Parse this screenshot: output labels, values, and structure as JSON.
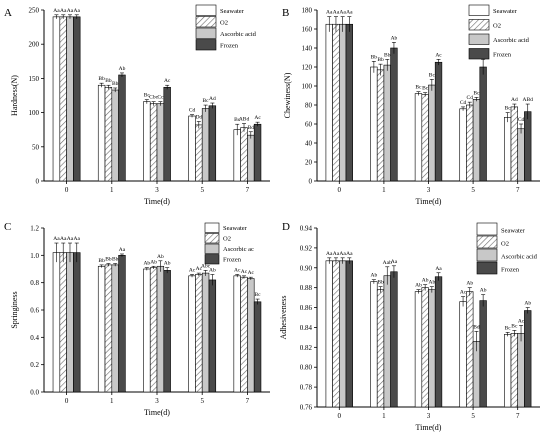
{
  "colors": {
    "seawater": "#ffffff",
    "o2": "#ffffff",
    "ascorbic": "#c8c8c8",
    "frozen": "#4a4a4a",
    "axis": "#000000"
  },
  "chart_data": [
    {
      "panel": "A",
      "type": "bar",
      "categories": [
        "0",
        "1",
        "3",
        "5",
        "7"
      ],
      "xlabel": "Time(d)",
      "ylabel": "Hardness(N)",
      "ylim": [
        0,
        250
      ],
      "yticks": [
        0,
        50,
        100,
        150,
        200,
        250
      ],
      "legend_placement": "top-right",
      "series": [
        {
          "name": "Seawater",
          "values": [
            240,
            140,
            116,
            95,
            75
          ],
          "errors": [
            3,
            3,
            3,
            2,
            8
          ],
          "labels": [
            "Aa",
            "Bb",
            "Bc",
            "Cd",
            "Bc"
          ]
        },
        {
          "name": "O2",
          "values": [
            240,
            137,
            113,
            82,
            78
          ],
          "errors": [
            3,
            3,
            3,
            5,
            6
          ],
          "labels": [
            "Aa",
            "Bb",
            "Cbc",
            "Dd",
            "ABd"
          ]
        },
        {
          "name": "Ascorbic acid",
          "values": [
            240,
            133,
            113,
            106,
            67
          ],
          "errors": [
            3,
            3,
            3,
            5,
            5
          ],
          "labels": [
            "Aa",
            "Bb",
            "Cc",
            "Bc",
            "Bd"
          ]
        },
        {
          "name": "Frozen",
          "values": [
            240,
            155,
            137,
            110,
            83
          ],
          "errors": [
            3,
            3,
            3,
            4,
            3
          ],
          "labels": [
            "Aa",
            "Ab",
            "Ac",
            "Ad",
            "Ac"
          ]
        }
      ]
    },
    {
      "panel": "B",
      "type": "bar",
      "categories": [
        "0",
        "1",
        "3",
        "5",
        "7"
      ],
      "xlabel": "Time(d)",
      "ylabel": "Chewiness(N)",
      "ylim": [
        0,
        180
      ],
      "yticks": [
        0,
        20,
        40,
        60,
        80,
        100,
        120,
        140,
        160,
        180
      ],
      "legend_placement": "top-right",
      "series": [
        {
          "name": "Seawater",
          "values": [
            165,
            120,
            92,
            76,
            67
          ],
          "errors": [
            8,
            6,
            2,
            2,
            5
          ],
          "labels": [
            "Aa",
            "Bb",
            "Bc",
            "Cd",
            "Bc"
          ]
        },
        {
          "name": "O2",
          "values": [
            165,
            117,
            91,
            80,
            78
          ],
          "errors": [
            8,
            6,
            2,
            3,
            3
          ],
          "labels": [
            "Aa",
            "Bb",
            "Bc",
            "Cd",
            "Ad"
          ]
        },
        {
          "name": "Ascorbic acid",
          "values": [
            165,
            122,
            101,
            86,
            55
          ],
          "errors": [
            8,
            6,
            6,
            2,
            5
          ],
          "labels": [
            "Aa",
            "Bb",
            "Bc",
            "Bc",
            "Cd"
          ]
        },
        {
          "name": "Frozen",
          "values": [
            165,
            140,
            125,
            120,
            73
          ],
          "errors": [
            8,
            6,
            3,
            8,
            8
          ],
          "labels": [
            "Aa",
            "Ab",
            "Ac",
            "Ac",
            "ABd"
          ]
        }
      ]
    },
    {
      "panel": "C",
      "type": "bar",
      "categories": [
        "0",
        "1",
        "3",
        "5",
        "7"
      ],
      "xlabel": "Time(d)",
      "ylabel": "Springiness",
      "ylim": [
        0,
        1.2
      ],
      "yticks": [
        0.0,
        0.2,
        0.4,
        0.6,
        0.8,
        1.0,
        1.2
      ],
      "legend_placement": "top-right",
      "series": [
        {
          "name": "Seawater",
          "values": [
            1.02,
            0.92,
            0.9,
            0.85,
            0.85
          ],
          "errors": [
            0.07,
            0.01,
            0.01,
            0.01,
            0.01
          ],
          "labels": [
            "Aa",
            "Bb",
            "Ab",
            "Ac",
            "Ac"
          ]
        },
        {
          "name": "O2",
          "values": [
            1.02,
            0.93,
            0.91,
            0.86,
            0.84
          ],
          "errors": [
            0.07,
            0.01,
            0.01,
            0.01,
            0.01
          ],
          "labels": [
            "Aa",
            "Bb",
            "Ab",
            "Ac",
            "Ac"
          ]
        },
        {
          "name": "Ascorbic ac",
          "values": [
            1.02,
            0.93,
            0.92,
            0.87,
            0.83
          ],
          "errors": [
            0.07,
            0.01,
            0.04,
            0.02,
            0.01
          ],
          "labels": [
            "Aa",
            "Bb",
            "Ab",
            "Abc",
            "Ac"
          ]
        },
        {
          "name": "Frozen",
          "values": [
            1.02,
            1.0,
            0.89,
            0.82,
            0.66
          ],
          "errors": [
            0.07,
            0.01,
            0.02,
            0.04,
            0.02
          ],
          "labels": [
            "Aa",
            "Aa",
            "Ab",
            "Ab",
            "Bc"
          ]
        }
      ]
    },
    {
      "panel": "D",
      "type": "bar",
      "categories": [
        "0",
        "1",
        "3",
        "5",
        "7"
      ],
      "xlabel": "Time(d)",
      "ylabel": "Adhesiveness",
      "ylim": [
        0.76,
        0.94
      ],
      "yticks": [
        0.76,
        0.78,
        0.8,
        0.82,
        0.84,
        0.86,
        0.88,
        0.9,
        0.92,
        0.94
      ],
      "legend_placement": "top-right",
      "series": [
        {
          "name": "Seawater",
          "values": [
            0.907,
            0.886,
            0.876,
            0.866,
            0.833
          ],
          "errors": [
            0.003,
            0.002,
            0.002,
            0.005,
            0.002
          ],
          "labels": [
            "Aa",
            "Ab",
            "Ab",
            "Ac",
            "Bc"
          ]
        },
        {
          "name": "O2",
          "values": [
            0.907,
            0.878,
            0.88,
            0.876,
            0.834
          ],
          "errors": [
            0.003,
            0.003,
            0.003,
            0.004,
            0.003
          ],
          "labels": [
            "Aa",
            "Bb",
            "Ab",
            "Ab",
            "Bc"
          ]
        },
        {
          "name": "Ascorbic acid",
          "values": [
            0.907,
            0.892,
            0.878,
            0.826,
            0.834
          ],
          "errors": [
            0.003,
            0.009,
            0.003,
            0.01,
            0.008
          ],
          "labels": [
            "Aa",
            "Aab",
            "Ab",
            "Bd",
            "Ac"
          ]
        },
        {
          "name": "Frozen",
          "values": [
            0.907,
            0.896,
            0.891,
            0.867,
            0.857
          ],
          "errors": [
            0.003,
            0.006,
            0.004,
            0.006,
            0.003
          ],
          "labels": [
            "Aa",
            "Aa",
            "Aa",
            "Ab",
            "Ab"
          ]
        }
      ]
    }
  ]
}
